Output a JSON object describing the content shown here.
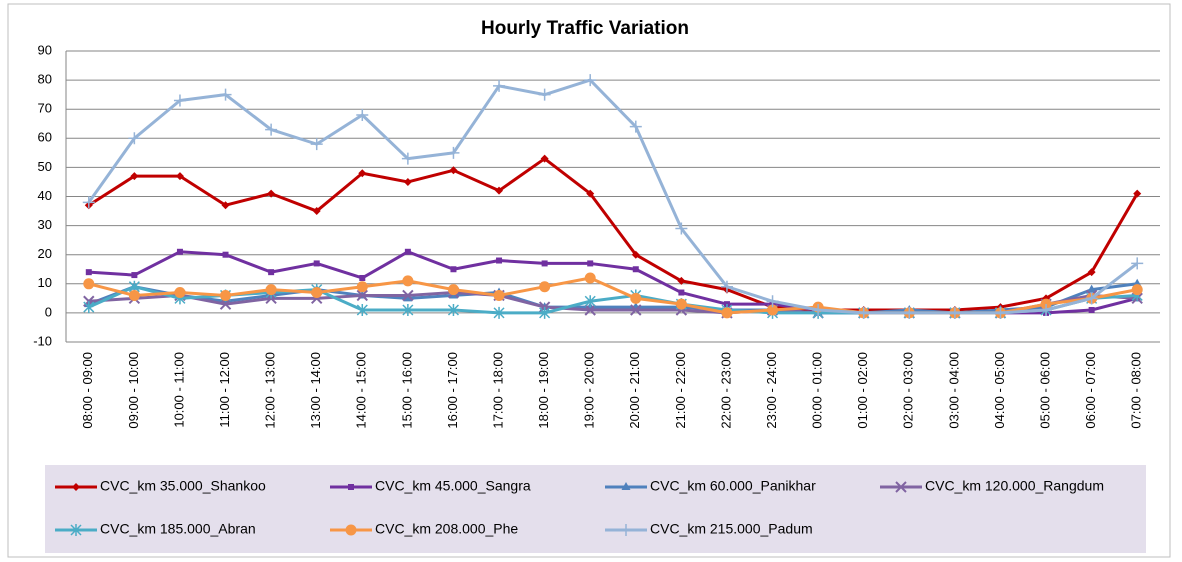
{
  "chart_data": {
    "type": "line",
    "title": "Hourly Traffic Variation",
    "categories": [
      "08:00 - 09:00",
      "09:00 - 10:00",
      "10:00 - 11:00",
      "11:00 - 12:00",
      "12:00 - 13:00",
      "13:00 - 14:00",
      "14:00 - 15:00",
      "15:00 - 16:00",
      "16:00 - 17:00",
      "17:00 - 18:00",
      "18:00 - 19:00",
      "19:00 - 20:00",
      "20:00 - 21:00",
      "21:00 - 22:00",
      "22:00 - 23:00",
      "23:00 - 24:00",
      "00:00 - 01:00",
      "01:00 - 02:00",
      "02:00 - 03:00",
      "03:00 - 04:00",
      "04:00 - 05:00",
      "05:00 - 06:00",
      "06:00 - 07:00",
      "07:00 - 08:00"
    ],
    "series": [
      {
        "name": "CVC_km 35.000_Shankoo",
        "color": "#c00000",
        "marker": "diamond",
        "values": [
          37,
          47,
          47,
          37,
          41,
          35,
          48,
          45,
          49,
          42,
          53,
          41,
          20,
          11,
          8,
          2,
          1,
          1,
          1,
          1,
          2,
          5,
          14,
          41
        ]
      },
      {
        "name": "CVC_km 45.000_Sangra",
        "color": "#7030a0",
        "marker": "square",
        "values": [
          14,
          13,
          21,
          20,
          14,
          17,
          12,
          21,
          15,
          18,
          17,
          17,
          15,
          7,
          3,
          3,
          1,
          0,
          0,
          0,
          0,
          0,
          1,
          5
        ]
      },
      {
        "name": "CVC_km 60.000_Panikhar",
        "color": "#4f81bd",
        "marker": "triangle",
        "values": [
          3,
          9,
          6,
          4,
          6,
          8,
          6,
          5,
          6,
          7,
          2,
          2,
          2,
          2,
          1,
          1,
          0,
          0,
          1,
          0,
          1,
          2,
          8,
          10
        ]
      },
      {
        "name": "CVC_km 120.000_Rangdum",
        "color": "#8064a2",
        "marker": "x",
        "values": [
          4,
          5,
          6,
          3,
          5,
          5,
          6,
          6,
          7,
          6,
          2,
          1,
          1,
          1,
          0,
          1,
          0,
          0,
          0,
          0,
          0,
          3,
          6,
          5
        ]
      },
      {
        "name": "CVC_km 185.000_Abran",
        "color": "#4bacc6",
        "marker": "star",
        "values": [
          2,
          9,
          5,
          6,
          7,
          8,
          1,
          1,
          1,
          0,
          0,
          4,
          6,
          3,
          1,
          0,
          0,
          0,
          0,
          0,
          0,
          1,
          5,
          6
        ]
      },
      {
        "name": "CVC_km 208.000_Phe",
        "color": "#f79646",
        "marker": "circle",
        "values": [
          10,
          6,
          7,
          6,
          8,
          7,
          9,
          11,
          8,
          6,
          9,
          12,
          5,
          3,
          0,
          1,
          2,
          0,
          0,
          0,
          0,
          3,
          5,
          8
        ]
      },
      {
        "name": "CVC_km 215.000_Padum",
        "color": "#95b3d7",
        "marker": "plus",
        "values": [
          38,
          60,
          73,
          75,
          63,
          58,
          68,
          53,
          55,
          78,
          75,
          80,
          64,
          29,
          9,
          4,
          1,
          0,
          0,
          0,
          0,
          1,
          5,
          17
        ]
      }
    ],
    "ylim": [
      -10,
      90
    ],
    "yticks": [
      -10,
      0,
      10,
      20,
      30,
      40,
      50,
      60,
      70,
      80,
      90
    ],
    "grid": true,
    "legend": "bottom"
  }
}
